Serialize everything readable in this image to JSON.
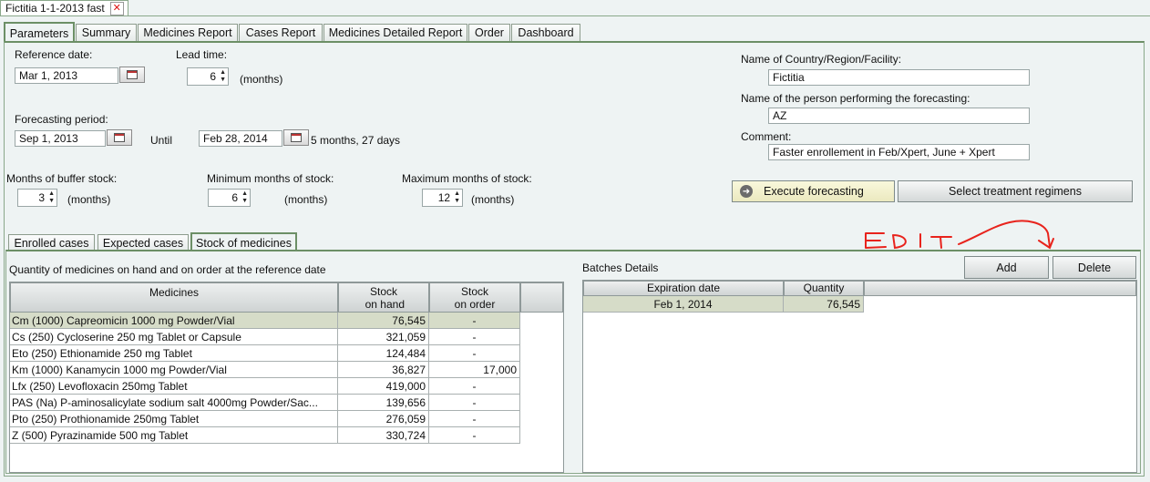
{
  "window": {
    "title": "Fictitia 1-1-2013 fast",
    "close_glyph": "✕"
  },
  "main_tabs": [
    {
      "label": "Parameters"
    },
    {
      "label": "Summary"
    },
    {
      "label": "Medicines Report"
    },
    {
      "label": "Cases Report"
    },
    {
      "label": "Medicines Detailed Report"
    },
    {
      "label": "Order"
    },
    {
      "label": "Dashboard"
    }
  ],
  "params": {
    "reference_date_label": "Reference date:",
    "reference_date": "Mar 1, 2013",
    "lead_time_label": "Lead time:",
    "lead_time": "6",
    "months": "(months)",
    "forecasting_period_label": "Forecasting period:",
    "period_start": "Sep 1, 2013",
    "until": "Until",
    "period_end": "Feb 28, 2014",
    "period_duration": "5 months, 27  days",
    "buffer_label": "Months of buffer stock:",
    "buffer": "3",
    "min_label": "Minimum months of stock:",
    "min": "6",
    "max_label": "Maximum months of stock:",
    "max": "12",
    "country_label": "Name of Country/Region/Facility:",
    "country": "Fictitia",
    "person_label": "Name of the person performing the forecasting:",
    "person": "AZ",
    "comment_label": "Comment:",
    "comment": "Faster enrollement in Feb/Xpert, June + Xpert",
    "execute_label": "Execute forecasting",
    "select_regimens_label": "Select treatment regimens"
  },
  "sub_tabs": [
    {
      "label": "Enrolled cases"
    },
    {
      "label": "Expected cases"
    },
    {
      "label": "Stock of medicines"
    }
  ],
  "stock": {
    "caption": "Quantity of medicines on hand and on order at the reference date",
    "headers": {
      "medicines": "Medicines",
      "on_hand_1": "Stock",
      "on_hand_2": "on hand",
      "on_order_1": "Stock",
      "on_order_2": "on order"
    },
    "rows": [
      {
        "name": "Cm (1000)  Capreomicin  1000 mg  Powder/Vial",
        "on_hand": "76,545",
        "on_order": "-"
      },
      {
        "name": "Cs (250)  Cycloserine  250 mg  Tablet or Capsule",
        "on_hand": "321,059",
        "on_order": "-"
      },
      {
        "name": "Eto (250)  Ethionamide  250 mg  Tablet",
        "on_hand": "124,484",
        "on_order": "-"
      },
      {
        "name": "Km (1000)  Kanamycin  1000 mg  Powder/Vial",
        "on_hand": "36,827",
        "on_order": "17,000"
      },
      {
        "name": "Lfx (250)  Levofloxacin  250mg  Tablet",
        "on_hand": "419,000",
        "on_order": "-"
      },
      {
        "name": "PAS (Na)  P-aminosalicylate sodium salt  4000mg  Powder/Sac...",
        "on_hand": "139,656",
        "on_order": "-"
      },
      {
        "name": "Pto (250)  Prothionamide   250mg  Tablet",
        "on_hand": "276,059",
        "on_order": "-"
      },
      {
        "name": "Z (500)  Pyrazinamide  500 mg  Tablet",
        "on_hand": "330,724",
        "on_order": "-"
      }
    ]
  },
  "batches": {
    "caption": "Batches Details",
    "add_label": "Add",
    "delete_label": "Delete",
    "headers": {
      "expiration": "Expiration date",
      "quantity": "Quantity"
    },
    "rows": [
      {
        "expiration": "Feb 1, 2014",
        "quantity": "76,545"
      }
    ]
  },
  "annotation": {
    "text": "EDIT",
    "color": "#e8231c"
  },
  "colors": {
    "accent_green": "#6c8f66",
    "selected_row": "#d6dcc8",
    "execute_button": "#f3f2cf"
  }
}
